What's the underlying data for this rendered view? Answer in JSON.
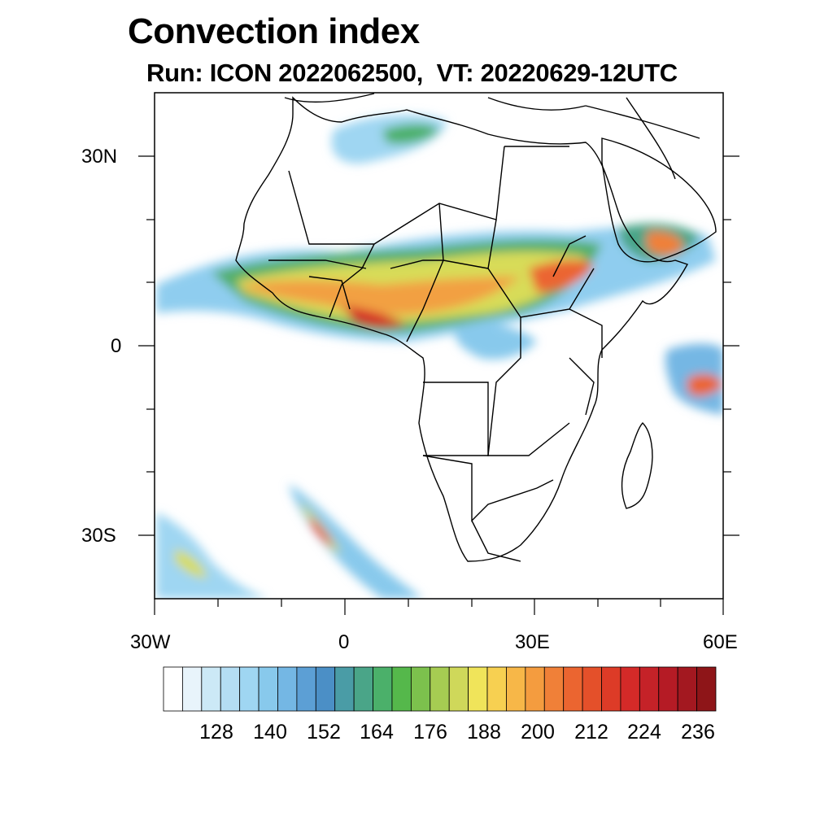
{
  "title": "Convection index",
  "subtitle": "Run: ICON 2022062500,  VT: 20220629-12UTC",
  "lat_labels": [
    "30N",
    "0",
    "30S"
  ],
  "lon_labels": [
    "30W",
    "0",
    "30E",
    "60E"
  ],
  "map": {
    "lon_range": [
      -30,
      60
    ],
    "lat_range": [
      -40,
      40
    ],
    "content": "Africa and surrounding seas with country borders; convection index field shaded"
  },
  "colorbar": {
    "labels": [
      "128",
      "140",
      "152",
      "164",
      "176",
      "188",
      "200",
      "212",
      "224",
      "236"
    ],
    "colors": [
      "#ffffff",
      "#e8f4fb",
      "#cce9f6",
      "#b4ddf3",
      "#9fd6f2",
      "#88c9ec",
      "#74b7e4",
      "#5c9fd5",
      "#4b8fc6",
      "#4a9ca6",
      "#4aa588",
      "#4bb06a",
      "#55b84b",
      "#7cc14d",
      "#a6cc52",
      "#cfd85a",
      "#f0e45a",
      "#f7d051",
      "#f7b748",
      "#f49c3f",
      "#f08038",
      "#eb6530",
      "#e4502a",
      "#dd3b27",
      "#d42a28",
      "#c52228",
      "#b51b25",
      "#a31820",
      "#8e1518"
    ]
  }
}
